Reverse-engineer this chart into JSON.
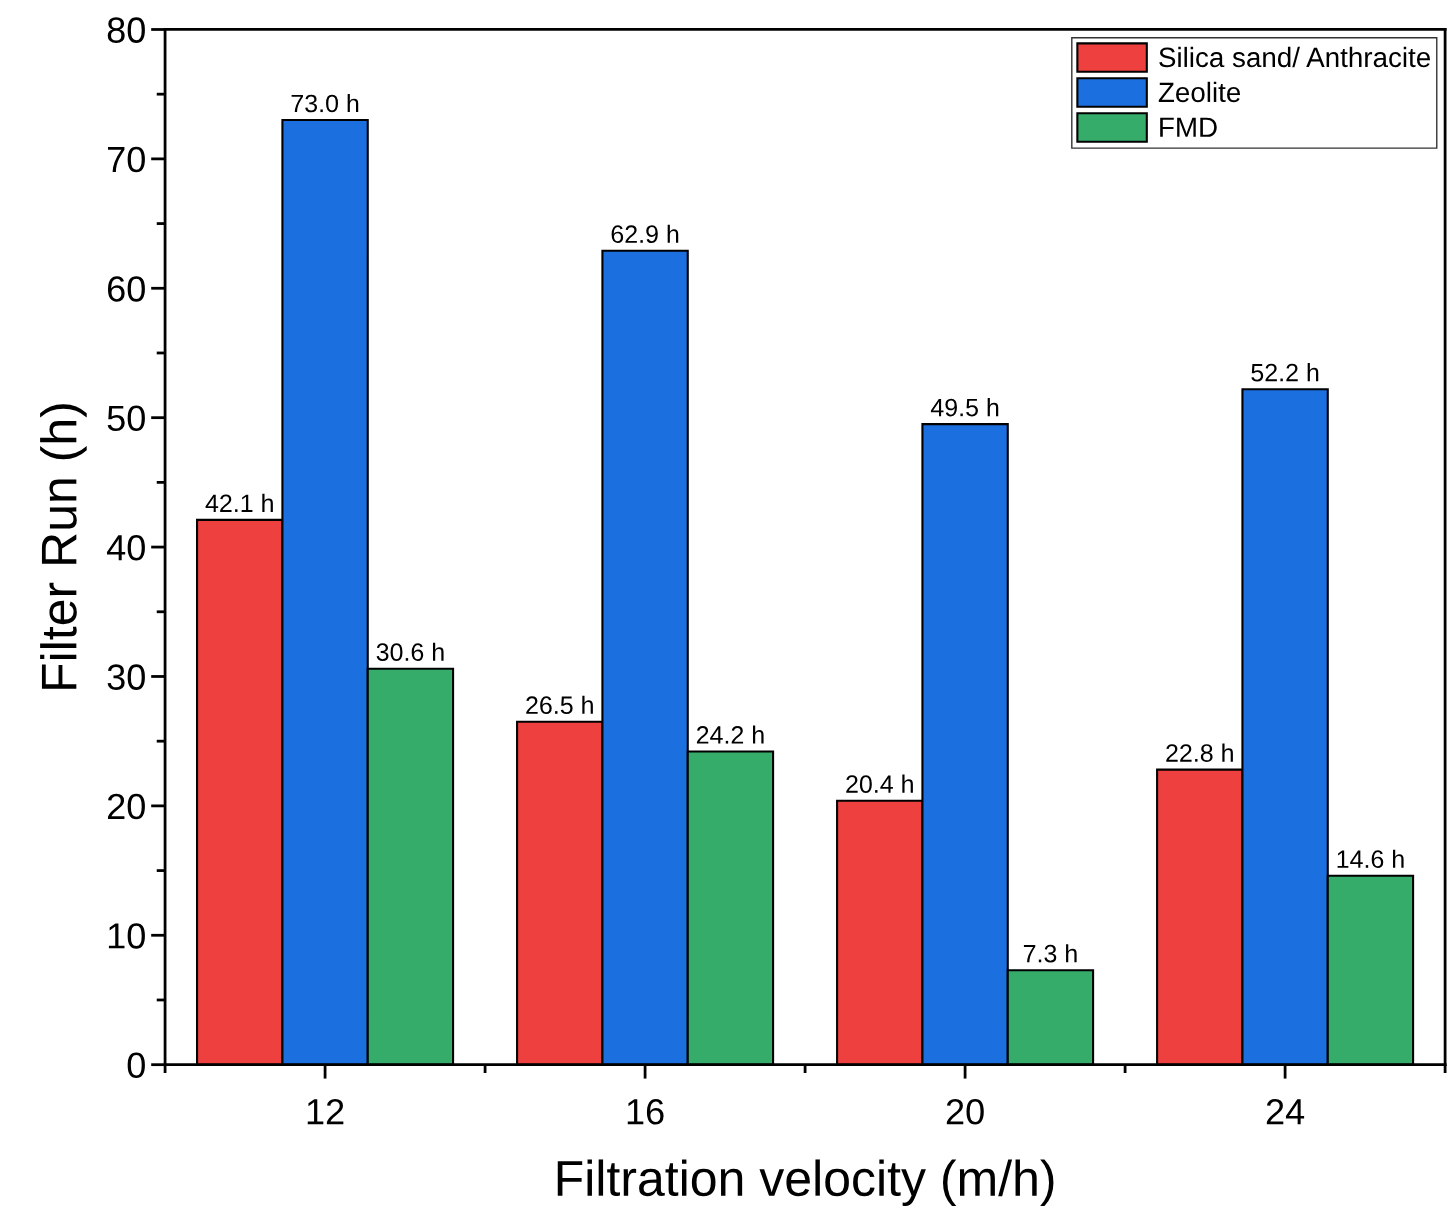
{
  "chart_data": {
    "type": "bar",
    "xlabel": "Filtration velocity (m/h)",
    "ylabel": "Filter Run (h)",
    "categories": [
      "12",
      "16",
      "20",
      "24"
    ],
    "series": [
      {
        "name": "Silica sand/ Anthracite",
        "color": "#ef4040",
        "values": [
          42.1,
          26.5,
          20.4,
          22.8
        ],
        "value_labels": [
          "42.1 h",
          "26.5 h",
          "20.4 h",
          "22.8 h"
        ]
      },
      {
        "name": "Zeolite",
        "color": "#1b6fde",
        "values": [
          73.0,
          62.9,
          49.5,
          52.2
        ],
        "value_labels": [
          "73.0 h",
          "62.9 h",
          "49.5 h",
          "52.2 h"
        ]
      },
      {
        "name": "FMD",
        "color": "#36ac6a",
        "values": [
          30.6,
          24.2,
          7.3,
          14.6
        ],
        "value_labels": [
          "30.6 h",
          "24.2 h",
          "7.3 h",
          "14.6 h"
        ]
      }
    ],
    "ylim": [
      0,
      80
    ],
    "yticks": [
      0,
      10,
      20,
      30,
      40,
      50,
      60,
      70,
      80
    ],
    "grid": false,
    "legend": "top right"
  }
}
